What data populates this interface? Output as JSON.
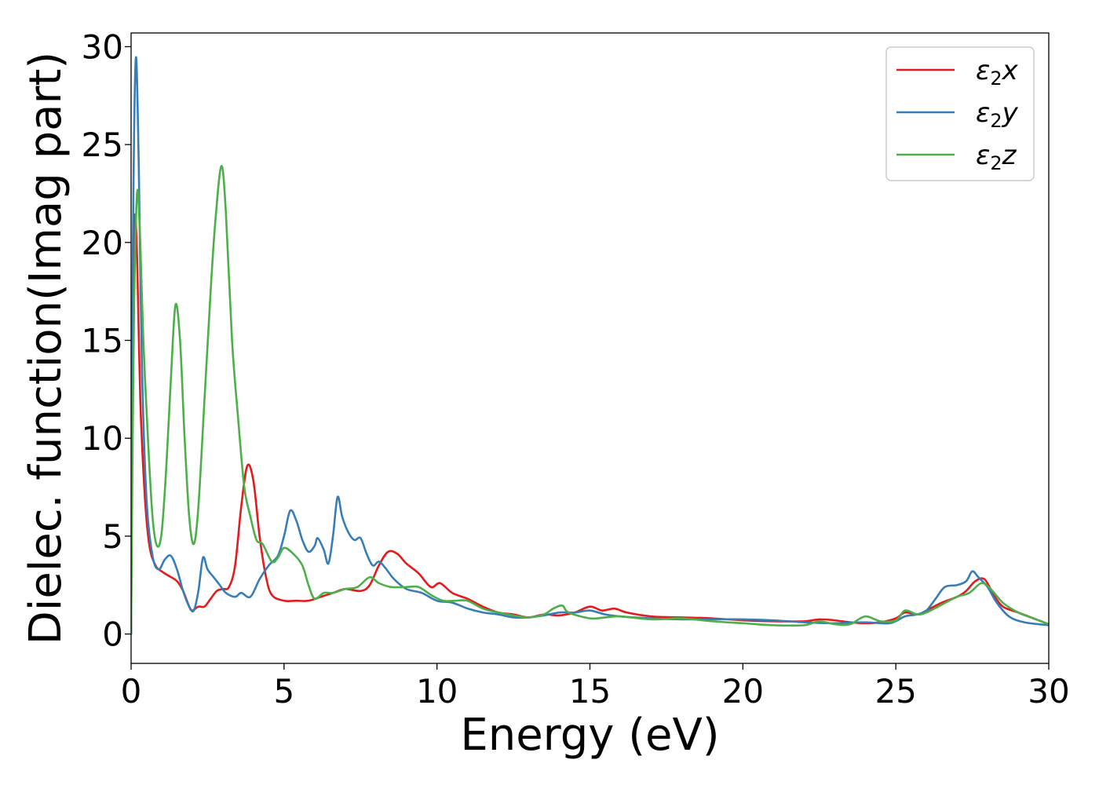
{
  "chart_data": {
    "type": "line",
    "title": "",
    "xlabel": "Energy (eV)",
    "ylabel": "Dielec. function(Imag part)",
    "xlim": [
      0,
      30
    ],
    "ylim": [
      -1.5,
      30.7
    ],
    "xticks": [
      0,
      5,
      10,
      15,
      20,
      25,
      30
    ],
    "yticks": [
      0,
      5,
      10,
      15,
      20,
      25,
      30
    ],
    "grid": false,
    "legend_position": "top-right",
    "legend": [
      {
        "symbol": "ε",
        "sub": "2",
        "var": "x"
      },
      {
        "symbol": "ε",
        "sub": "2",
        "var": "y"
      },
      {
        "symbol": "ε",
        "sub": "2",
        "var": "z"
      }
    ],
    "series": [
      {
        "color": "#e41a1c",
        "points": [
          [
            0,
            0
          ],
          [
            0.05,
            14
          ],
          [
            0.12,
            21.2
          ],
          [
            0.2,
            19
          ],
          [
            0.3,
            12
          ],
          [
            0.45,
            7
          ],
          [
            0.6,
            4.5
          ],
          [
            0.8,
            3.5
          ],
          [
            1.0,
            3.2
          ],
          [
            1.2,
            3.0
          ],
          [
            1.5,
            2.7
          ],
          [
            1.7,
            2.2
          ],
          [
            1.9,
            1.4
          ],
          [
            2.0,
            1.2
          ],
          [
            2.2,
            1.4
          ],
          [
            2.4,
            1.4
          ],
          [
            2.6,
            1.8
          ],
          [
            2.8,
            2.2
          ],
          [
            3.0,
            2.3
          ],
          [
            3.2,
            2.4
          ],
          [
            3.4,
            3.5
          ],
          [
            3.6,
            6.5
          ],
          [
            3.8,
            8.6
          ],
          [
            4.0,
            7.8
          ],
          [
            4.2,
            5.0
          ],
          [
            4.4,
            3.0
          ],
          [
            4.6,
            2.0
          ],
          [
            5.0,
            1.7
          ],
          [
            5.4,
            1.7
          ],
          [
            5.8,
            1.7
          ],
          [
            6.2,
            1.9
          ],
          [
            6.6,
            2.1
          ],
          [
            7.0,
            2.3
          ],
          [
            7.5,
            2.2
          ],
          [
            7.8,
            2.5
          ],
          [
            8.1,
            3.5
          ],
          [
            8.4,
            4.2
          ],
          [
            8.7,
            4.1
          ],
          [
            9.0,
            3.6
          ],
          [
            9.4,
            3.1
          ],
          [
            9.8,
            2.4
          ],
          [
            10.1,
            2.6
          ],
          [
            10.5,
            2.1
          ],
          [
            11.0,
            1.8
          ],
          [
            11.5,
            1.4
          ],
          [
            12.0,
            1.1
          ],
          [
            12.5,
            1.0
          ],
          [
            13.0,
            0.85
          ],
          [
            13.5,
            1.0
          ],
          [
            14.0,
            0.95
          ],
          [
            14.5,
            1.1
          ],
          [
            15.0,
            1.4
          ],
          [
            15.4,
            1.2
          ],
          [
            15.8,
            1.3
          ],
          [
            16.2,
            1.1
          ],
          [
            17.0,
            0.9
          ],
          [
            18.0,
            0.85
          ],
          [
            19.0,
            0.8
          ],
          [
            20.0,
            0.7
          ],
          [
            21.0,
            0.65
          ],
          [
            22.0,
            0.65
          ],
          [
            22.5,
            0.75
          ],
          [
            23.0,
            0.7
          ],
          [
            23.5,
            0.6
          ],
          [
            24.0,
            0.55
          ],
          [
            24.5,
            0.6
          ],
          [
            25.0,
            0.8
          ],
          [
            25.3,
            1.1
          ],
          [
            25.7,
            1.0
          ],
          [
            26.0,
            1.2
          ],
          [
            26.5,
            1.6
          ],
          [
            27.0,
            1.9
          ],
          [
            27.3,
            2.2
          ],
          [
            27.6,
            2.7
          ],
          [
            27.9,
            2.8
          ],
          [
            28.2,
            2.0
          ],
          [
            28.5,
            1.4
          ],
          [
            29.0,
            1.1
          ],
          [
            29.5,
            0.8
          ],
          [
            30.0,
            0.5
          ]
        ]
      },
      {
        "color": "#377eb8",
        "points": [
          [
            0,
            0
          ],
          [
            0.05,
            18
          ],
          [
            0.15,
            29.3
          ],
          [
            0.25,
            24
          ],
          [
            0.35,
            14
          ],
          [
            0.5,
            7
          ],
          [
            0.7,
            4.0
          ],
          [
            0.9,
            3.3
          ],
          [
            1.1,
            3.8
          ],
          [
            1.3,
            4.0
          ],
          [
            1.5,
            3.3
          ],
          [
            1.7,
            2.2
          ],
          [
            1.9,
            1.4
          ],
          [
            2.05,
            1.2
          ],
          [
            2.2,
            2.2
          ],
          [
            2.35,
            3.9
          ],
          [
            2.5,
            3.3
          ],
          [
            2.7,
            2.9
          ],
          [
            2.9,
            2.5
          ],
          [
            3.1,
            2.1
          ],
          [
            3.4,
            1.9
          ],
          [
            3.6,
            2.1
          ],
          [
            3.9,
            1.9
          ],
          [
            4.2,
            2.8
          ],
          [
            4.5,
            3.5
          ],
          [
            4.8,
            4.0
          ],
          [
            5.0,
            5.0
          ],
          [
            5.2,
            6.3
          ],
          [
            5.4,
            5.8
          ],
          [
            5.6,
            4.8
          ],
          [
            5.8,
            4.2
          ],
          [
            6.0,
            4.5
          ],
          [
            6.1,
            4.9
          ],
          [
            6.3,
            4.3
          ],
          [
            6.45,
            3.6
          ],
          [
            6.6,
            5.0
          ],
          [
            6.75,
            7.0
          ],
          [
            6.9,
            6.0
          ],
          [
            7.1,
            5.2
          ],
          [
            7.3,
            4.8
          ],
          [
            7.5,
            4.9
          ],
          [
            7.7,
            4.1
          ],
          [
            7.9,
            3.5
          ],
          [
            8.1,
            3.7
          ],
          [
            8.3,
            3.4
          ],
          [
            8.6,
            2.8
          ],
          [
            9.0,
            2.3
          ],
          [
            9.5,
            2.1
          ],
          [
            10.0,
            1.7
          ],
          [
            10.5,
            1.6
          ],
          [
            11.0,
            1.3
          ],
          [
            11.5,
            1.1
          ],
          [
            12.0,
            1.0
          ],
          [
            12.5,
            0.85
          ],
          [
            13.0,
            0.85
          ],
          [
            13.5,
            0.95
          ],
          [
            14.0,
            1.1
          ],
          [
            14.5,
            1.1
          ],
          [
            15.0,
            1.2
          ],
          [
            15.5,
            1.0
          ],
          [
            16.0,
            0.9
          ],
          [
            17.0,
            0.8
          ],
          [
            18.0,
            0.75
          ],
          [
            19.0,
            0.75
          ],
          [
            20.0,
            0.75
          ],
          [
            21.0,
            0.7
          ],
          [
            22.0,
            0.6
          ],
          [
            23.0,
            0.55
          ],
          [
            24.0,
            0.6
          ],
          [
            24.8,
            0.55
          ],
          [
            25.3,
            0.9
          ],
          [
            25.7,
            1.0
          ],
          [
            26.0,
            1.2
          ],
          [
            26.3,
            1.8
          ],
          [
            26.6,
            2.4
          ],
          [
            27.0,
            2.5
          ],
          [
            27.3,
            2.7
          ],
          [
            27.5,
            3.2
          ],
          [
            27.7,
            2.9
          ],
          [
            28.0,
            2.4
          ],
          [
            28.3,
            1.6
          ],
          [
            28.7,
            0.9
          ],
          [
            29.2,
            0.6
          ],
          [
            30.0,
            0.45
          ]
        ]
      },
      {
        "color": "#4daf4a",
        "points": [
          [
            0,
            0
          ],
          [
            0.05,
            10
          ],
          [
            0.1,
            17
          ],
          [
            0.2,
            22.6
          ],
          [
            0.3,
            20
          ],
          [
            0.4,
            15
          ],
          [
            0.55,
            10
          ],
          [
            0.7,
            6
          ],
          [
            0.85,
            4.5
          ],
          [
            1.0,
            5.2
          ],
          [
            1.15,
            8.5
          ],
          [
            1.3,
            13
          ],
          [
            1.45,
            16.8
          ],
          [
            1.6,
            15
          ],
          [
            1.75,
            10
          ],
          [
            1.9,
            6
          ],
          [
            2.05,
            4.6
          ],
          [
            2.2,
            6.5
          ],
          [
            2.4,
            12
          ],
          [
            2.6,
            17.5
          ],
          [
            2.75,
            21
          ],
          [
            2.95,
            23.9
          ],
          [
            3.1,
            21.5
          ],
          [
            3.3,
            15
          ],
          [
            3.5,
            11
          ],
          [
            3.7,
            7.5
          ],
          [
            3.9,
            6.0
          ],
          [
            4.1,
            4.8
          ],
          [
            4.3,
            4.6
          ],
          [
            4.6,
            3.7
          ],
          [
            4.8,
            3.9
          ],
          [
            5.0,
            4.4
          ],
          [
            5.3,
            4.1
          ],
          [
            5.6,
            3.5
          ],
          [
            5.8,
            2.5
          ],
          [
            6.0,
            1.8
          ],
          [
            6.3,
            2.1
          ],
          [
            6.6,
            2.1
          ],
          [
            7.0,
            2.3
          ],
          [
            7.4,
            2.4
          ],
          [
            7.8,
            2.9
          ],
          [
            8.1,
            2.6
          ],
          [
            8.5,
            2.4
          ],
          [
            9.0,
            2.4
          ],
          [
            9.4,
            2.4
          ],
          [
            9.8,
            2.0
          ],
          [
            10.2,
            1.7
          ],
          [
            10.6,
            1.7
          ],
          [
            11.0,
            1.7
          ],
          [
            11.5,
            1.3
          ],
          [
            12.0,
            1.1
          ],
          [
            12.5,
            0.95
          ],
          [
            13.0,
            0.85
          ],
          [
            13.5,
            1.0
          ],
          [
            13.8,
            1.3
          ],
          [
            14.1,
            1.45
          ],
          [
            14.3,
            1.1
          ],
          [
            15.0,
            0.8
          ],
          [
            15.5,
            0.85
          ],
          [
            16.0,
            0.9
          ],
          [
            17.0,
            0.75
          ],
          [
            18.0,
            0.8
          ],
          [
            19.0,
            0.65
          ],
          [
            20.0,
            0.55
          ],
          [
            21.0,
            0.45
          ],
          [
            22.0,
            0.45
          ],
          [
            22.5,
            0.65
          ],
          [
            23.0,
            0.5
          ],
          [
            23.5,
            0.5
          ],
          [
            24.0,
            0.9
          ],
          [
            24.5,
            0.65
          ],
          [
            25.0,
            0.7
          ],
          [
            25.3,
            1.2
          ],
          [
            25.7,
            1.0
          ],
          [
            26.0,
            1.1
          ],
          [
            26.5,
            1.5
          ],
          [
            27.0,
            1.9
          ],
          [
            27.4,
            2.1
          ],
          [
            27.8,
            2.6
          ],
          [
            28.1,
            2.3
          ],
          [
            28.5,
            1.6
          ],
          [
            29.0,
            1.1
          ],
          [
            29.5,
            0.8
          ],
          [
            30.0,
            0.5
          ]
        ]
      }
    ]
  }
}
